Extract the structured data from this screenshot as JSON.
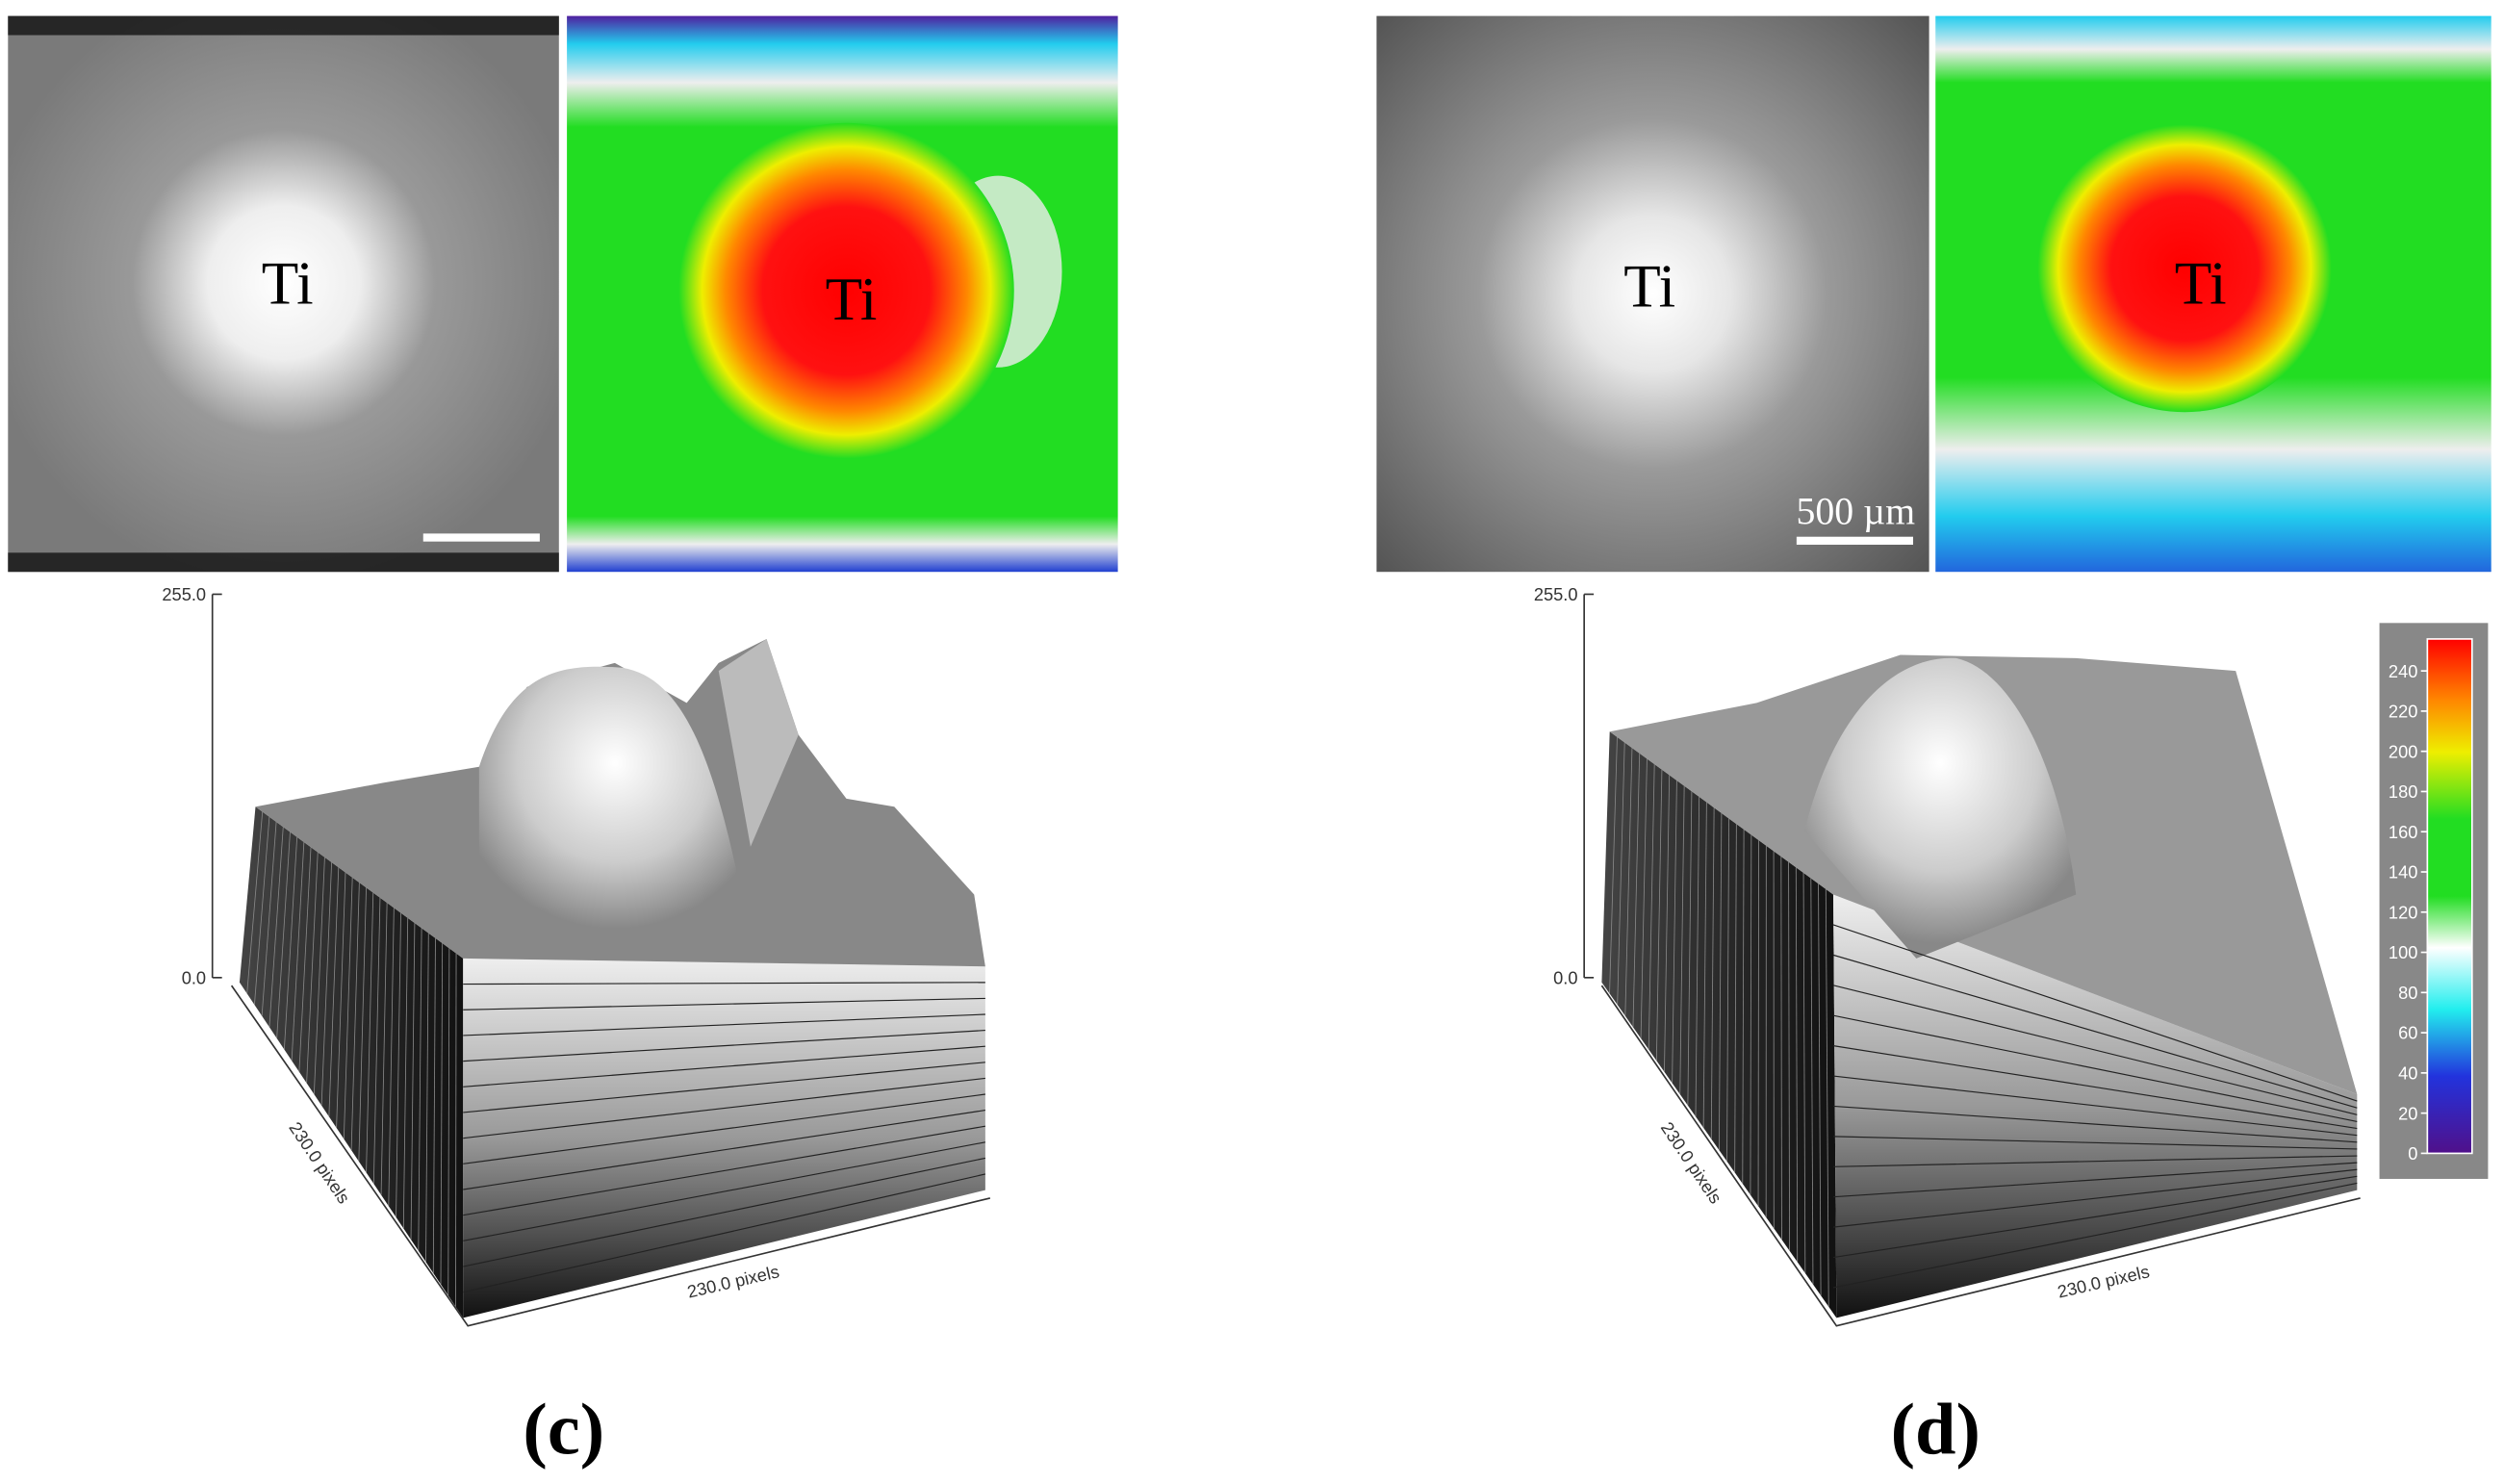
{
  "panels": [
    {
      "label": "(c)",
      "gray_image": {
        "annotation": "Ti"
      },
      "color_image": {
        "annotation": "Ti"
      },
      "surface_plot": {
        "z_axis": {
          "top": "255.0",
          "bottom": "0.0"
        },
        "left_axis_label": "230.0 pixels",
        "bottom_axis_label": "230.0 pixels"
      }
    },
    {
      "label": "(d)",
      "gray_image": {
        "annotation": "Ti",
        "scale_bar": "500 µm"
      },
      "color_image": {
        "annotation": "Ti"
      },
      "surface_plot": {
        "z_axis": {
          "top": "255.0",
          "bottom": "0.0"
        },
        "left_axis_label": "230.0 pixels",
        "bottom_axis_label": "230.0 pixels"
      }
    }
  ],
  "colorbar": {
    "ticks": [
      0,
      20,
      40,
      60,
      80,
      100,
      120,
      140,
      160,
      180,
      200,
      220,
      240
    ]
  }
}
